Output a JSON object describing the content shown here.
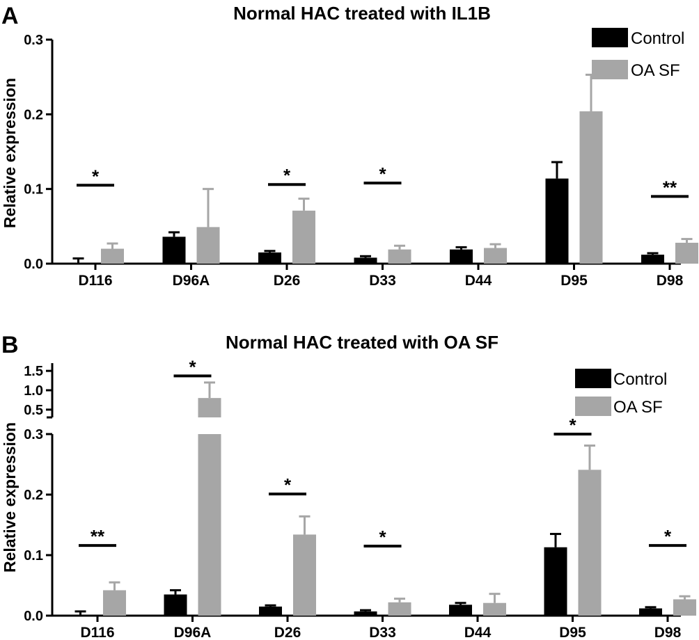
{
  "chart_data": [
    {
      "panel": "A",
      "type": "bar",
      "title": "Normal HAC treated with IL1B",
      "xlabel": "",
      "ylabel": "Relative expression",
      "ylim": [
        0,
        0.3
      ],
      "yticks": [
        "0.0",
        "0.1",
        "0.2",
        "0.3"
      ],
      "categories": [
        "D116",
        "D96A",
        "D26",
        "D33",
        "D44",
        "D95",
        "D98"
      ],
      "series": [
        {
          "name": "Control",
          "color": "#000000",
          "values": [
            0.001,
            0.036,
            0.015,
            0.008,
            0.019,
            0.114,
            0.012
          ],
          "errors": [
            0.006,
            0.006,
            0.002,
            0.002,
            0.003,
            0.022,
            0.002
          ]
        },
        {
          "name": "OA SF",
          "color": "#a6a6a6",
          "values": [
            0.02,
            0.049,
            0.071,
            0.019,
            0.021,
            0.204,
            0.028
          ],
          "errors": [
            0.007,
            0.051,
            0.016,
            0.005,
            0.005,
            0.049,
            0.005
          ]
        }
      ],
      "significance": [
        {
          "category": "D116",
          "label": "*",
          "level": 0.105
        },
        {
          "category": "D26",
          "label": "*",
          "level": 0.106
        },
        {
          "category": "D33",
          "label": "*",
          "level": 0.108
        },
        {
          "category": "D98",
          "label": "**",
          "level": 0.09
        }
      ],
      "legend": "top-right"
    },
    {
      "panel": "B",
      "type": "bar",
      "title": "Normal HAC treated with OA SF",
      "xlabel": "",
      "ylabel": "Relative expression",
      "ylim": [
        0,
        0.3
      ],
      "ylim_upper": [
        0.3,
        1.7
      ],
      "axis_break": true,
      "yticks": [
        "0.0",
        "0.1",
        "0.2",
        "0.3"
      ],
      "yticks_upper": [
        "0.5",
        "1.0",
        "1.5"
      ],
      "categories": [
        "D116",
        "D96A",
        "D26",
        "D33",
        "D44",
        "D95",
        "D98"
      ],
      "series": [
        {
          "name": "Control",
          "color": "#000000",
          "values": [
            0.001,
            0.035,
            0.015,
            0.007,
            0.018,
            0.113,
            0.012
          ],
          "errors": [
            0.006,
            0.007,
            0.002,
            0.002,
            0.003,
            0.022,
            0.002
          ]
        },
        {
          "name": "OA SF",
          "color": "#a6a6a6",
          "values": [
            0.042,
            0.8,
            0.134,
            0.022,
            0.021,
            0.241,
            0.027
          ],
          "errors": [
            0.013,
            0.4,
            0.03,
            0.006,
            0.015,
            0.04,
            0.005
          ]
        }
      ],
      "significance": [
        {
          "category": "D116",
          "label": "**",
          "level": 0.116
        },
        {
          "category": "D96A",
          "label": "*",
          "level": 1.37
        },
        {
          "category": "D26",
          "label": "*",
          "level": 0.201
        },
        {
          "category": "D33",
          "label": "*",
          "level": 0.115
        },
        {
          "category": "D95",
          "label": "*",
          "level": 0.3
        },
        {
          "category": "D98",
          "label": "*",
          "level": 0.116
        }
      ],
      "legend": "top-right"
    }
  ]
}
